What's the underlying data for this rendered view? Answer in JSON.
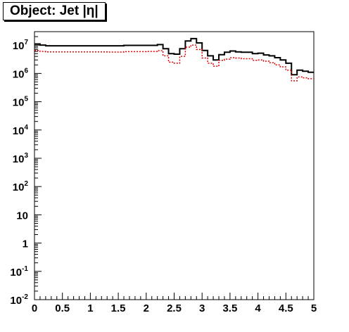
{
  "chart_data": {
    "type": "line",
    "title": "Object: Jet |η|",
    "xlabel": "",
    "ylabel": "",
    "xlim": [
      0,
      5
    ],
    "ylim": [
      0.01,
      30000000
    ],
    "yscale": "log",
    "grid": false,
    "x_ticks": [
      "0",
      "0.5",
      "1",
      "1.5",
      "2",
      "2.5",
      "3",
      "3.5",
      "4",
      "4.5",
      "5"
    ],
    "y_ticks": [
      {
        "base": "10",
        "exp": "-2"
      },
      {
        "base": "10",
        "exp": "-1"
      },
      {
        "base": "1",
        "exp": ""
      },
      {
        "base": "10",
        "exp": ""
      },
      {
        "base": "10",
        "exp": "2"
      },
      {
        "base": "10",
        "exp": "3"
      },
      {
        "base": "10",
        "exp": "4"
      },
      {
        "base": "10",
        "exp": "5"
      },
      {
        "base": "10",
        "exp": "6"
      },
      {
        "base": "10",
        "exp": "7"
      }
    ],
    "bin_width": 0.1,
    "x_edges": [
      0.0,
      0.1,
      0.2,
      0.3,
      0.4,
      0.5,
      0.6,
      0.7,
      0.8,
      0.9,
      1.0,
      1.1,
      1.2,
      1.3,
      1.4,
      1.5,
      1.6,
      1.7,
      1.8,
      1.9,
      2.0,
      2.1,
      2.2,
      2.3,
      2.4,
      2.5,
      2.6,
      2.7,
      2.8,
      2.9,
      3.0,
      3.1,
      3.2,
      3.3,
      3.4,
      3.5,
      3.6,
      3.7,
      3.8,
      3.9,
      4.0,
      4.1,
      4.2,
      4.3,
      4.4,
      4.5,
      4.6,
      4.7,
      4.8,
      4.9,
      5.0
    ],
    "series": [
      {
        "color": "#000000",
        "style": "solid",
        "values": [
          11000000,
          10000000,
          9500000,
          9500000,
          9500000,
          9500000,
          9500000,
          9500000,
          9500000,
          9500000,
          9500000,
          9500000,
          9500000,
          9500000,
          9500000,
          9500000,
          9800000,
          9800000,
          9800000,
          9800000,
          9800000,
          9800000,
          10500000,
          7500000,
          5000000,
          4800000,
          7500000,
          14000000,
          17000000,
          12000000,
          6500000,
          4200000,
          3000000,
          4600000,
          5600000,
          6200000,
          5800000,
          5600000,
          5600000,
          5000000,
          5200000,
          4500000,
          4200000,
          3600000,
          3000000,
          2300000,
          900000,
          1300000,
          1200000,
          1100000
        ]
      },
      {
        "color": "#dd0000",
        "style": "dashed",
        "values": [
          6500000,
          6000000,
          5800000,
          5800000,
          5800000,
          5800000,
          5800000,
          5800000,
          5800000,
          5800000,
          5800000,
          5800000,
          5800000,
          5700000,
          5700000,
          5700000,
          5900000,
          5900000,
          5900000,
          5900000,
          6000000,
          6000000,
          6400000,
          4200000,
          2500000,
          2300000,
          4000000,
          8500000,
          10000000,
          7000000,
          3500000,
          2300000,
          1800000,
          2900000,
          3200000,
          3600000,
          3500000,
          3300000,
          3300000,
          2900000,
          3000000,
          2700000,
          2400000,
          2000000,
          1700000,
          1300000,
          550000,
          750000,
          700000,
          650000
        ]
      }
    ]
  }
}
